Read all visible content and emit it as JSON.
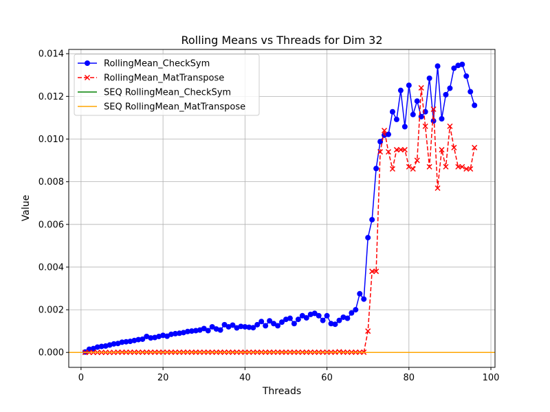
{
  "chart_data": {
    "type": "line",
    "title": "Rolling Means vs Threads for Dim 32",
    "xlabel": "Threads",
    "ylabel": "Value",
    "xlim": [
      -3,
      101
    ],
    "ylim": [
      -0.0007,
      0.0142
    ],
    "xticks": [
      0,
      20,
      40,
      60,
      80,
      100
    ],
    "yticks": [
      0.0,
      0.002,
      0.004,
      0.006,
      0.008,
      0.01,
      0.012,
      0.014
    ],
    "ytick_labels": [
      "0.000",
      "0.002",
      "0.004",
      "0.006",
      "0.008",
      "0.010",
      "0.012",
      "0.014"
    ],
    "grid": true,
    "legend_position": "upper-left",
    "series": [
      {
        "name": "RollingMean_CheckSym",
        "color": "#0000ff",
        "style": "solid",
        "marker": "circle",
        "x": [
          1,
          2,
          3,
          4,
          5,
          6,
          7,
          8,
          9,
          10,
          11,
          12,
          13,
          14,
          15,
          16,
          17,
          18,
          19,
          20,
          21,
          22,
          23,
          24,
          25,
          26,
          27,
          28,
          29,
          30,
          31,
          32,
          33,
          34,
          35,
          36,
          37,
          38,
          39,
          40,
          41,
          42,
          43,
          44,
          45,
          46,
          47,
          48,
          49,
          50,
          51,
          52,
          53,
          54,
          55,
          56,
          57,
          58,
          59,
          60,
          61,
          62,
          63,
          64,
          65,
          66,
          67,
          68,
          69,
          70,
          71,
          72,
          73,
          74,
          75,
          76,
          77,
          78,
          79,
          80,
          81,
          82,
          83,
          84,
          85,
          86,
          87,
          88,
          89,
          90,
          91,
          92,
          93,
          94,
          95,
          96
        ],
        "y": [
          2e-05,
          0.00015,
          0.00018,
          0.00025,
          0.00028,
          0.0003,
          0.00035,
          0.0004,
          0.00042,
          0.00048,
          0.0005,
          0.00052,
          0.00056,
          0.0006,
          0.00062,
          0.00075,
          0.00068,
          0.0007,
          0.00075,
          0.0008,
          0.00076,
          0.00085,
          0.00088,
          0.0009,
          0.00093,
          0.00098,
          0.001,
          0.00102,
          0.00105,
          0.00112,
          0.00102,
          0.0012,
          0.0011,
          0.00105,
          0.0013,
          0.0012,
          0.00128,
          0.00115,
          0.00122,
          0.0012,
          0.00118,
          0.00116,
          0.0013,
          0.00145,
          0.00125,
          0.00148,
          0.00135,
          0.00125,
          0.00142,
          0.00155,
          0.0016,
          0.00135,
          0.00155,
          0.00172,
          0.00162,
          0.00178,
          0.00183,
          0.00172,
          0.0015,
          0.00172,
          0.00135,
          0.00132,
          0.0015,
          0.00165,
          0.0016,
          0.00185,
          0.002,
          0.00275,
          0.0025,
          0.00538,
          0.00622,
          0.00862,
          0.00988,
          0.01018,
          0.01022,
          0.01128,
          0.01092,
          0.01228,
          0.01058,
          0.01252,
          0.01115,
          0.01178,
          0.01105,
          0.01128,
          0.01285,
          0.01085,
          0.01342,
          0.01095,
          0.01208,
          0.01238,
          0.01332,
          0.01345,
          0.0135,
          0.01295,
          0.01222,
          0.01158
        ]
      },
      {
        "name": "RollingMean_MatTranspose",
        "color": "#ff0000",
        "style": "dashed",
        "marker": "x",
        "x": [
          1,
          2,
          3,
          4,
          5,
          6,
          7,
          8,
          9,
          10,
          11,
          12,
          13,
          14,
          15,
          16,
          17,
          18,
          19,
          20,
          21,
          22,
          23,
          24,
          25,
          26,
          27,
          28,
          29,
          30,
          31,
          32,
          33,
          34,
          35,
          36,
          37,
          38,
          39,
          40,
          41,
          42,
          43,
          44,
          45,
          46,
          47,
          48,
          49,
          50,
          51,
          52,
          53,
          54,
          55,
          56,
          57,
          58,
          59,
          60,
          61,
          62,
          63,
          64,
          65,
          66,
          67,
          68,
          69,
          70,
          71,
          72,
          73,
          74,
          75,
          76,
          77,
          78,
          79,
          80,
          81,
          82,
          83,
          84,
          85,
          86,
          87,
          88,
          89,
          90,
          91,
          92,
          93,
          94,
          95,
          96
        ],
        "y": [
          0.0,
          0.0,
          0.0,
          0.0,
          0.0,
          0.0,
          0.0,
          0.0,
          1e-05,
          1e-05,
          1e-05,
          1e-05,
          1e-05,
          1e-05,
          1e-05,
          1e-05,
          1e-05,
          1e-05,
          1e-05,
          1e-05,
          1e-05,
          1e-05,
          1e-05,
          1e-05,
          1e-05,
          1e-05,
          1e-05,
          1e-05,
          1e-05,
          1e-05,
          1e-05,
          1e-05,
          1e-05,
          1e-05,
          1e-05,
          1e-05,
          1e-05,
          1e-05,
          1e-05,
          1e-05,
          1e-05,
          1e-05,
          1e-05,
          1e-05,
          1e-05,
          1e-05,
          1e-05,
          1e-05,
          1e-05,
          1e-05,
          1e-05,
          1e-05,
          1e-05,
          1e-05,
          1e-05,
          1e-05,
          1e-05,
          1e-05,
          1e-05,
          1e-05,
          1e-05,
          1e-05,
          3e-05,
          1e-05,
          1e-05,
          1e-05,
          1e-05,
          1e-05,
          1e-05,
          0.001,
          0.0038,
          0.0038,
          0.0094,
          0.0104,
          0.0094,
          0.0086,
          0.0095,
          0.0095,
          0.0095,
          0.0087,
          0.0086,
          0.009,
          0.0124,
          0.0106,
          0.0087,
          0.0114,
          0.0077,
          0.0095,
          0.0087,
          0.0106,
          0.0096,
          0.0087,
          0.0087,
          0.0086,
          0.0086,
          0.0096
        ]
      },
      {
        "name": "SEQ RollingMean_CheckSym",
        "color": "#008000",
        "style": "solid",
        "marker": "none",
        "hline": 0.0
      },
      {
        "name": "SEQ RollingMean_MatTranspose",
        "color": "#ffa500",
        "style": "solid",
        "marker": "none",
        "hline": 0.0
      }
    ]
  }
}
